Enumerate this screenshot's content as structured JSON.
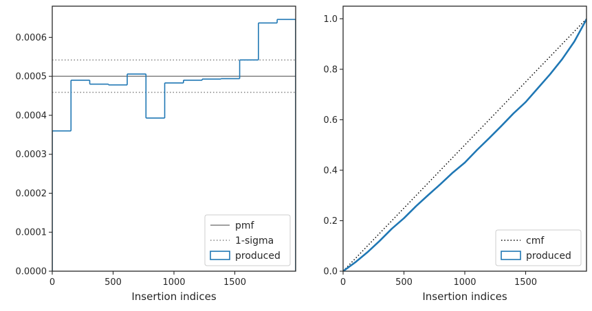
{
  "chart_data": [
    {
      "type": "step",
      "xlabel": "Insertion indices",
      "ylabel": "",
      "xlim": [
        0,
        2000
      ],
      "ylim": [
        0,
        0.00068
      ],
      "xticks": [
        0,
        500,
        1000,
        1500
      ],
      "xtick_labels": [
        "0",
        "500",
        "1000",
        "1500"
      ],
      "yticks": [
        0,
        0.0001,
        0.0002,
        0.0003,
        0.0004,
        0.0005,
        0.0006
      ],
      "ytick_labels": [
        "0.0000",
        "0.0001",
        "0.0002",
        "0.0003",
        "0.0004",
        "0.0005",
        "0.0006"
      ],
      "grid": false,
      "legend_position": "lower-right",
      "pmf": {
        "name": "pmf",
        "value": 0.0005,
        "color": "#808080",
        "style": "solid"
      },
      "sigma": {
        "name": "1-sigma",
        "values": [
          0.000542,
          0.000459
        ],
        "color": "#808080",
        "style": "dotted"
      },
      "produced": {
        "name": "produced",
        "color": "#1f77b4",
        "bin_edges": [
          0,
          154,
          308,
          462,
          616,
          770,
          924,
          1078,
          1232,
          1386,
          1540,
          1694,
          1848,
          2000
        ],
        "values": [
          0.00036,
          0.00049,
          0.00048,
          0.000478,
          0.000506,
          0.000393,
          0.000483,
          0.00049,
          0.000493,
          0.000494,
          0.000542,
          0.000637,
          0.000646
        ]
      }
    },
    {
      "type": "line",
      "xlabel": "Insertion indices",
      "ylabel": "",
      "xlim": [
        0,
        2000
      ],
      "ylim": [
        0,
        1.05
      ],
      "xticks": [
        0,
        500,
        1000,
        1500
      ],
      "xtick_labels": [
        "0",
        "500",
        "1000",
        "1500"
      ],
      "yticks": [
        0,
        0.2,
        0.4,
        0.6,
        0.8,
        1.0
      ],
      "ytick_labels": [
        "0.0",
        "0.2",
        "0.4",
        "0.6",
        "0.8",
        "1.0"
      ],
      "grid": false,
      "legend_position": "lower-right",
      "cmf": {
        "name": "cmf",
        "x": [
          0,
          2000
        ],
        "y": [
          0,
          1.0
        ],
        "color": "#000000",
        "style": "dotted"
      },
      "produced": {
        "name": "produced",
        "color": "#1f77b4",
        "x": [
          0,
          100,
          200,
          300,
          400,
          500,
          600,
          700,
          800,
          900,
          1000,
          1100,
          1200,
          1300,
          1400,
          1500,
          1600,
          1700,
          1800,
          1900,
          2000
        ],
        "y": [
          0,
          0.035,
          0.075,
          0.12,
          0.168,
          0.21,
          0.258,
          0.302,
          0.345,
          0.39,
          0.43,
          0.48,
          0.527,
          0.575,
          0.625,
          0.67,
          0.725,
          0.78,
          0.84,
          0.91,
          0.998
        ]
      }
    }
  ]
}
